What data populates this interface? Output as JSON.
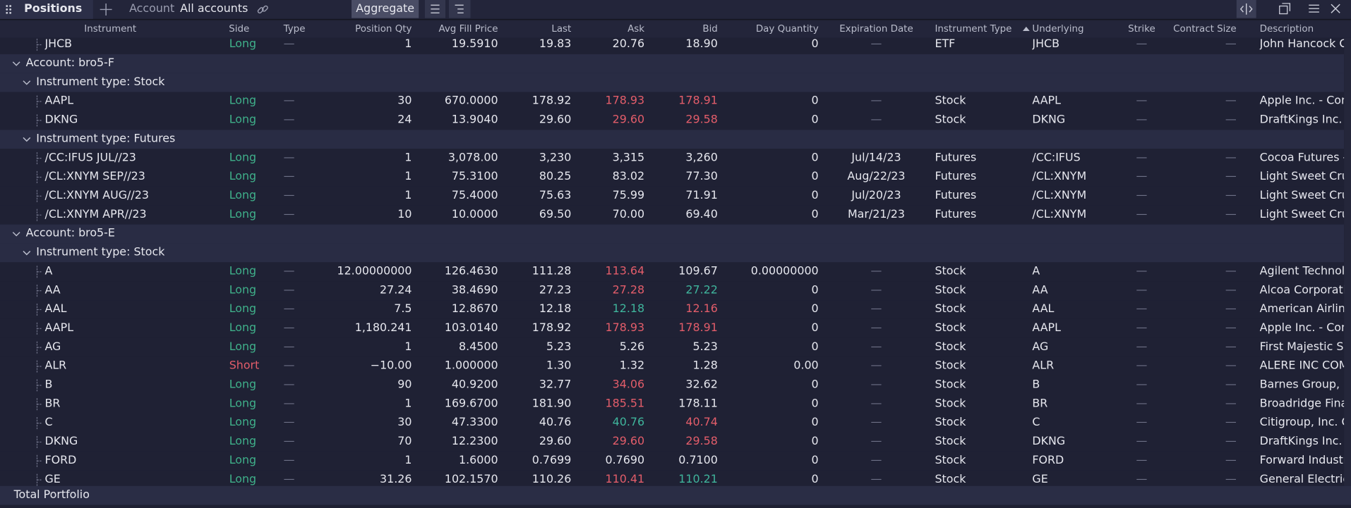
{
  "toolbar": {
    "title": "Positions",
    "account_label": "Account",
    "account_value": "All accounts",
    "aggregate": "Aggregate"
  },
  "table": {
    "columns": [
      "Instrument",
      "Side",
      "Type",
      "Position Qty",
      "Avg Fill Price",
      "Last",
      "Ask",
      "Bid",
      "Day Quantity",
      "Expiration Date",
      "Instrument Type",
      "Underlying",
      "Strike",
      "Contract Size",
      "Description"
    ],
    "side_colors": {
      "Long": "#3fb08a",
      "Short": "#e35d6a"
    },
    "rows": [
      {
        "kind": "position",
        "cells": [
          "JHCB",
          "Long",
          "—",
          "1",
          "19.5910",
          "19.83",
          "20.76",
          "18.90",
          "0",
          "—",
          "ETF",
          "JHCB",
          "—",
          "—",
          "John Hancock Co"
        ]
      },
      {
        "kind": "account",
        "label": "Account: bro5-F"
      },
      {
        "kind": "type",
        "label": "Instrument type: Stock"
      },
      {
        "kind": "position",
        "cells": [
          "AAPL",
          "Long",
          "—",
          "30",
          "670.0000",
          "178.92",
          "178.93",
          "178.91",
          "0",
          "—",
          "Stock",
          "AAPL",
          "—",
          "—",
          "Apple Inc. - Com"
        ],
        "ask_color": "#e35d6a",
        "bid_color": "#e35d6a"
      },
      {
        "kind": "position",
        "cells": [
          "DKNG",
          "Long",
          "—",
          "24",
          "13.9040",
          "29.60",
          "29.60",
          "29.58",
          "0",
          "—",
          "Stock",
          "DKNG",
          "—",
          "—",
          "DraftKings Inc. -"
        ],
        "ask_color": "#e35d6a",
        "bid_color": "#e35d6a"
      },
      {
        "kind": "type",
        "label": "Instrument type: Futures"
      },
      {
        "kind": "position",
        "cells": [
          "/CC:IFUS JUL//23",
          "Long",
          "—",
          "1",
          "3,078.00",
          "3,230",
          "3,315",
          "3,260",
          "0",
          "Jul/14/23",
          "Futures",
          "/CC:IFUS",
          "—",
          "—",
          "Cocoa Futures -"
        ]
      },
      {
        "kind": "position",
        "cells": [
          "/CL:XNYM SEP//23",
          "Long",
          "—",
          "1",
          "75.3100",
          "80.25",
          "83.02",
          "77.30",
          "0",
          "Aug/22/23",
          "Futures",
          "/CL:XNYM",
          "—",
          "—",
          "Light Sweet Cruc"
        ]
      },
      {
        "kind": "position",
        "cells": [
          "/CL:XNYM AUG//23",
          "Long",
          "—",
          "1",
          "75.4000",
          "75.63",
          "75.99",
          "71.91",
          "0",
          "Jul/20/23",
          "Futures",
          "/CL:XNYM",
          "—",
          "—",
          "Light Sweet Cruc"
        ]
      },
      {
        "kind": "position",
        "cells": [
          "/CL:XNYM APR//23",
          "Long",
          "—",
          "10",
          "10.0000",
          "69.50",
          "70.00",
          "69.40",
          "0",
          "Mar/21/23",
          "Futures",
          "/CL:XNYM",
          "—",
          "—",
          "Light Sweet Cruc"
        ]
      },
      {
        "kind": "account",
        "label": "Account: bro5-E"
      },
      {
        "kind": "type",
        "label": "Instrument type: Stock"
      },
      {
        "kind": "position",
        "cells": [
          "A",
          "Long",
          "—",
          "12.00000000",
          "126.4630",
          "111.28",
          "113.64",
          "109.67",
          "0.00000000",
          "—",
          "Stock",
          "A",
          "—",
          "—",
          "Agilent Technolo"
        ],
        "ask_color": "#e35d6a"
      },
      {
        "kind": "position",
        "cells": [
          "AA",
          "Long",
          "—",
          "27.24",
          "38.4690",
          "27.23",
          "27.28",
          "27.22",
          "0",
          "—",
          "Stock",
          "AA",
          "—",
          "—",
          "Alcoa Corporatic"
        ],
        "ask_color": "#e35d6a",
        "bid_color": "#3fb59c"
      },
      {
        "kind": "position",
        "cells": [
          "AAL",
          "Long",
          "—",
          "7.5",
          "12.8670",
          "12.18",
          "12.18",
          "12.16",
          "0",
          "—",
          "Stock",
          "AAL",
          "—",
          "—",
          "American Airline"
        ],
        "ask_color": "#3fb59c",
        "bid_color": "#e35d6a"
      },
      {
        "kind": "position",
        "cells": [
          "AAPL",
          "Long",
          "—",
          "1,180.241",
          "103.0140",
          "178.92",
          "178.93",
          "178.91",
          "0",
          "—",
          "Stock",
          "AAPL",
          "—",
          "—",
          "Apple Inc. - Com"
        ],
        "ask_color": "#e35d6a",
        "bid_color": "#e35d6a"
      },
      {
        "kind": "position",
        "cells": [
          "AG",
          "Long",
          "—",
          "1",
          "8.4500",
          "5.23",
          "5.26",
          "5.23",
          "0",
          "—",
          "Stock",
          "AG",
          "—",
          "—",
          "First Majestic Silv"
        ]
      },
      {
        "kind": "position",
        "cells": [
          "ALR",
          "Short",
          "—",
          "−10.00",
          "1.000000",
          "1.30",
          "1.32",
          "1.28",
          "0.00",
          "—",
          "Stock",
          "ALR",
          "—",
          "—",
          "ALERE INC COM"
        ]
      },
      {
        "kind": "position",
        "cells": [
          "B",
          "Long",
          "—",
          "90",
          "40.9200",
          "32.77",
          "34.06",
          "32.62",
          "0",
          "—",
          "Stock",
          "B",
          "—",
          "—",
          "Barnes Group, Ir"
        ],
        "ask_color": "#e35d6a"
      },
      {
        "kind": "position",
        "cells": [
          "BR",
          "Long",
          "—",
          "1",
          "169.6700",
          "181.90",
          "185.51",
          "178.11",
          "0",
          "—",
          "Stock",
          "BR",
          "—",
          "—",
          "Broadridge Finar"
        ],
        "ask_color": "#e35d6a"
      },
      {
        "kind": "position",
        "cells": [
          "C",
          "Long",
          "—",
          "30",
          "47.3300",
          "40.76",
          "40.76",
          "40.74",
          "0",
          "—",
          "Stock",
          "C",
          "—",
          "—",
          "Citigroup, Inc. Co"
        ],
        "ask_color": "#3fb59c",
        "bid_color": "#e35d6a"
      },
      {
        "kind": "position",
        "cells": [
          "DKNG",
          "Long",
          "—",
          "70",
          "12.2300",
          "29.60",
          "29.60",
          "29.58",
          "0",
          "—",
          "Stock",
          "DKNG",
          "—",
          "—",
          "DraftKings Inc. -"
        ],
        "ask_color": "#e35d6a",
        "bid_color": "#e35d6a"
      },
      {
        "kind": "position",
        "cells": [
          "FORD",
          "Long",
          "—",
          "1",
          "1.6000",
          "0.7699",
          "0.7690",
          "0.7100",
          "0",
          "—",
          "Stock",
          "FORD",
          "—",
          "—",
          "Forward Industr"
        ]
      },
      {
        "kind": "position",
        "cells": [
          "GE",
          "Long",
          "—",
          "31.26",
          "102.1570",
          "110.26",
          "110.41",
          "110.21",
          "0",
          "—",
          "Stock",
          "GE",
          "—",
          "—",
          "General Electric"
        ],
        "ask_color": "#e35d6a",
        "bid_color": "#3fb59c"
      }
    ],
    "footer": "Total Portfolio"
  }
}
